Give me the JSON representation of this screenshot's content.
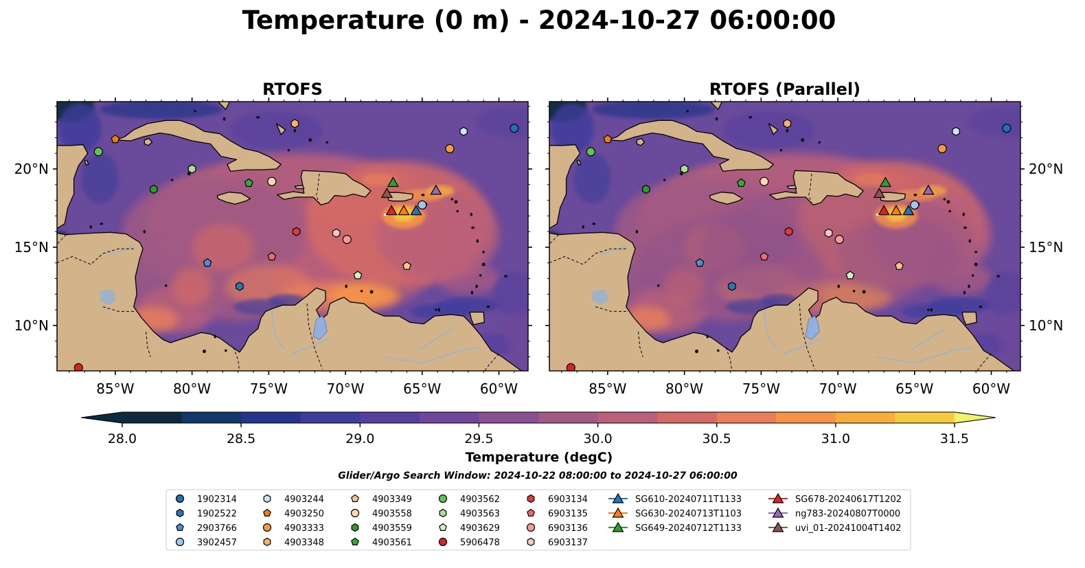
{
  "title": "Temperature (0 m) - 2024-10-27 06:00:00",
  "panels": [
    {
      "title": "RTOFS",
      "variant": "operational"
    },
    {
      "title": "RTOFS (Parallel)",
      "variant": "parallel"
    }
  ],
  "axes": {
    "lon_ticks": [
      {
        "v": -85,
        "label": "85°W"
      },
      {
        "v": -80,
        "label": "80°W"
      },
      {
        "v": -75,
        "label": "75°W"
      },
      {
        "v": -70,
        "label": "70°W"
      },
      {
        "v": -65,
        "label": "65°W"
      },
      {
        "v": -60,
        "label": "60°W"
      }
    ],
    "lat_ticks": [
      {
        "v": 10,
        "label": "10°N"
      },
      {
        "v": 15,
        "label": "15°N"
      },
      {
        "v": 20,
        "label": "20°N"
      }
    ],
    "lon_range": [
      -88.8,
      -58.1
    ],
    "lat_range": [
      7.1,
      24.3
    ]
  },
  "colorbar": {
    "label": "Temperature (degC)",
    "min": 28.0,
    "max": 31.5,
    "ticks": [
      "28.0",
      "28.5",
      "29.0",
      "29.5",
      "30.0",
      "30.5",
      "31.0",
      "31.5"
    ],
    "colors": [
      "#0b2a3d",
      "#113866",
      "#24358a",
      "#3d3d9c",
      "#573f9e",
      "#6e469a",
      "#87508f",
      "#a05a84",
      "#b9607a",
      "#d46a66",
      "#e87f5b",
      "#f59447",
      "#f8ac3c",
      "#f4cb3f",
      "#eef36a"
    ]
  },
  "colors": {
    "land": "#d3b48a",
    "lake": "#8fb0e0",
    "river": "#9ab3cc",
    "sea_default": "#6a4a9a"
  },
  "search_window": "Glider/Argo Search Window: 2024-10-22 08:00:00 to 2024-10-27 06:00:00",
  "legend": {
    "columns": [
      [
        {
          "label": "1902314",
          "shape": "circle",
          "color": "#1f6fb4"
        },
        {
          "label": "1902522",
          "shape": "hexagon",
          "color": "#2878b5"
        },
        {
          "label": "2903766",
          "shape": "pentagon",
          "color": "#4a8fd0"
        },
        {
          "label": "3902457",
          "shape": "circle",
          "color": "#9cc8ee"
        }
      ],
      [
        {
          "label": "4903244",
          "shape": "hexagon",
          "color": "#cfe3f6"
        },
        {
          "label": "4903250",
          "shape": "pentagon",
          "color": "#f07c12"
        },
        {
          "label": "4903333",
          "shape": "circle",
          "color": "#f79a3c"
        },
        {
          "label": "4903348",
          "shape": "hexagon",
          "color": "#f8b06a"
        }
      ],
      [
        {
          "label": "4903349",
          "shape": "pentagon",
          "color": "#f8c48c"
        },
        {
          "label": "4903558",
          "shape": "circle",
          "color": "#fad9b6"
        },
        {
          "label": "4903559",
          "shape": "hexagon",
          "color": "#2c9a2c"
        },
        {
          "label": "4903561",
          "shape": "pentagon",
          "color": "#3aa83a"
        }
      ],
      [
        {
          "label": "4903562",
          "shape": "circle",
          "color": "#62c256"
        },
        {
          "label": "4903563",
          "shape": "hexagon",
          "color": "#a8e09a"
        },
        {
          "label": "4903629",
          "shape": "pentagon",
          "color": "#d0f0c4"
        },
        {
          "label": "5906478",
          "shape": "circle",
          "color": "#d62424"
        }
      ],
      [
        {
          "label": "6903134",
          "shape": "hexagon",
          "color": "#e03a3a"
        },
        {
          "label": "6903135",
          "shape": "pentagon",
          "color": "#ee6a6a"
        },
        {
          "label": "6903136",
          "shape": "circle",
          "color": "#f49a9a"
        },
        {
          "label": "6903137",
          "shape": "hexagon",
          "color": "#f8c8c8"
        }
      ],
      [
        {
          "label": "SG610-20240711T1133",
          "shape": "triangle",
          "color": "#1f77b4",
          "line": true
        },
        {
          "label": "SG630-20240713T1103",
          "shape": "triangle",
          "color": "#ff7f0e",
          "line": true
        },
        {
          "label": "SG649-20240712T1133",
          "shape": "triangle",
          "color": "#2ca02c",
          "line": true
        }
      ],
      [
        {
          "label": "SG678-20240617T1202",
          "shape": "triangle",
          "color": "#d62728",
          "line": true
        },
        {
          "label": "ng783-20240807T0000",
          "shape": "triangle",
          "color": "#9467bd",
          "line": true
        },
        {
          "label": "uvi_01-20241004T1402",
          "shape": "triangle",
          "color": "#8c564b",
          "line": true
        }
      ]
    ]
  },
  "markers": [
    {
      "id": "1902314",
      "lon": -59.0,
      "lat": 22.6,
      "shape": "circle",
      "color": "#1f6fb4"
    },
    {
      "id": "1902522",
      "lon": -76.9,
      "lat": 12.5,
      "shape": "hexagon",
      "color": "#2878b5"
    },
    {
      "id": "2903766",
      "lon": -79.0,
      "lat": 14.0,
      "shape": "pentagon",
      "color": "#4a8fd0"
    },
    {
      "id": "3902457",
      "lon": -65.0,
      "lat": 17.7,
      "shape": "circle",
      "color": "#9cc8ee"
    },
    {
      "id": "4903244",
      "lon": -62.3,
      "lat": 22.4,
      "shape": "hexagon",
      "color": "#cfe3f6"
    },
    {
      "id": "4903250",
      "lon": -85.0,
      "lat": 21.9,
      "shape": "pentagon",
      "color": "#f07c12"
    },
    {
      "id": "4903333",
      "lon": -63.2,
      "lat": 21.3,
      "shape": "circle",
      "color": "#f79a3c"
    },
    {
      "id": "4903348",
      "lon": -73.3,
      "lat": 22.9,
      "shape": "hexagon",
      "color": "#f8b06a"
    },
    {
      "id": "4903349",
      "lon": -66.0,
      "lat": 13.8,
      "shape": "pentagon",
      "color": "#f8c48c"
    },
    {
      "id": "4903558",
      "lon": -74.8,
      "lat": 19.2,
      "shape": "circle",
      "color": "#fad9b6"
    },
    {
      "id": "4903559",
      "lon": -82.5,
      "lat": 18.7,
      "shape": "hexagon",
      "color": "#2c9a2c"
    },
    {
      "id": "4903561",
      "lon": -76.3,
      "lat": 19.1,
      "shape": "pentagon",
      "color": "#3aa83a"
    },
    {
      "id": "4903562",
      "lon": -86.1,
      "lat": 21.1,
      "shape": "circle",
      "color": "#62c256"
    },
    {
      "id": "4903563",
      "lon": -80.0,
      "lat": 20.0,
      "shape": "hexagon",
      "color": "#a8e09a"
    },
    {
      "id": "4903629",
      "lon": -69.2,
      "lat": 13.2,
      "shape": "pentagon",
      "color": "#d0f0c4"
    },
    {
      "id": "5906478",
      "lon": -87.4,
      "lat": 7.3,
      "shape": "circle",
      "color": "#d62424"
    },
    {
      "id": "6903134",
      "lon": -73.2,
      "lat": 16.0,
      "shape": "hexagon",
      "color": "#e03a3a"
    },
    {
      "id": "6903135",
      "lon": -74.8,
      "lat": 14.4,
      "shape": "pentagon",
      "color": "#ee6a6a"
    },
    {
      "id": "6903136",
      "lon": -69.9,
      "lat": 15.5,
      "shape": "circle",
      "color": "#f49a9a"
    },
    {
      "id": "6903137",
      "lon": -70.6,
      "lat": 15.9,
      "shape": "hexagon",
      "color": "#f8c8c8"
    },
    {
      "id": "SG610-20240711T1133",
      "lon": -65.4,
      "lat": 17.3,
      "shape": "triangle",
      "color": "#1f77b4"
    },
    {
      "id": "SG630-20240713T1103",
      "lon": -66.2,
      "lat": 17.3,
      "shape": "triangle",
      "color": "#ff7f0e"
    },
    {
      "id": "SG649-20240712T1133",
      "lon": -66.9,
      "lat": 19.1,
      "shape": "triangle",
      "color": "#2ca02c"
    },
    {
      "id": "SG678-20240617T1202",
      "lon": -67.0,
      "lat": 17.3,
      "shape": "triangle",
      "color": "#d62728"
    },
    {
      "id": "ng783-20240807T0000",
      "lon": -64.1,
      "lat": 18.6,
      "shape": "triangle",
      "color": "#9467bd"
    },
    {
      "id": "uvi_01-20241004T1402",
      "lon": -67.3,
      "lat": 18.4,
      "shape": "triangle",
      "color": "#8c564b"
    }
  ]
}
